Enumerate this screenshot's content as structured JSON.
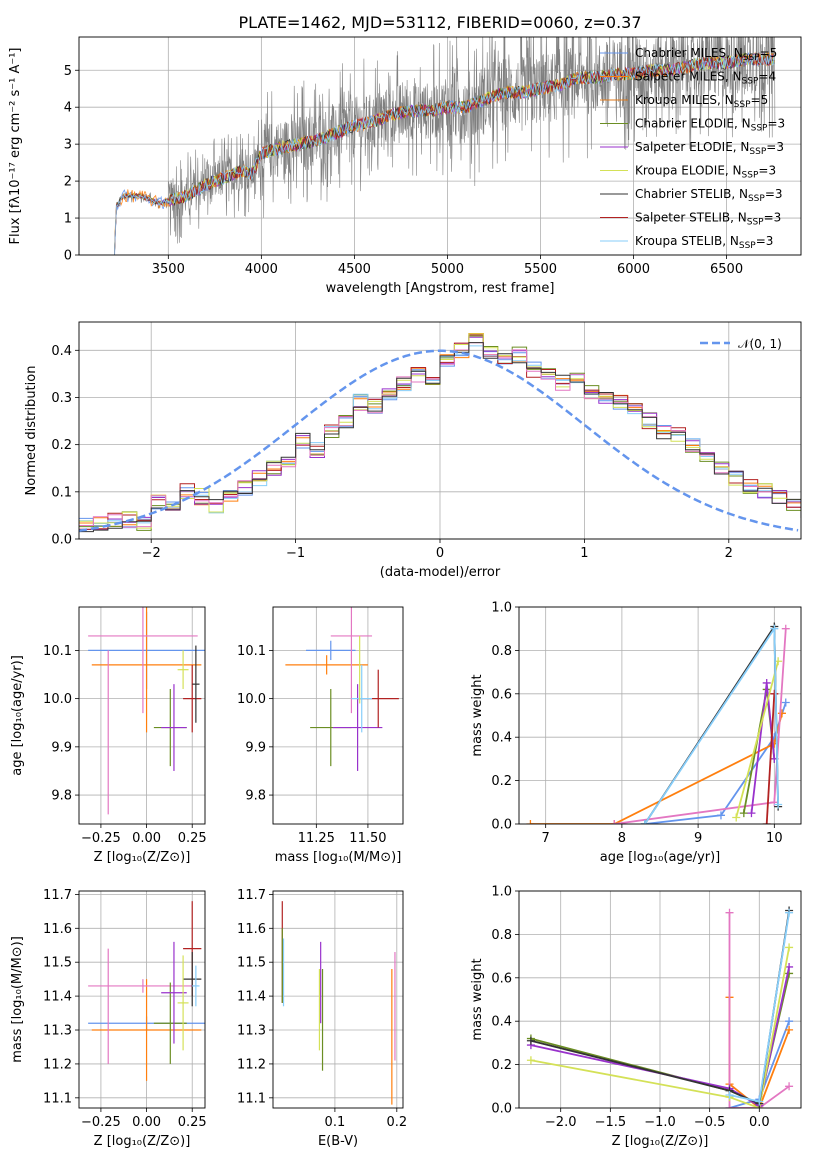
{
  "colors": {
    "chabrier_miles": "#6495ed",
    "salpeter_miles": "#ff7f0e",
    "kroupa_miles": "#e07a1a",
    "chabrier_elodie": "#6b8e23",
    "salpeter_elodie": "#9932cc",
    "kroupa_elodie": "#d4e157",
    "chabrier_stelib": "#333333",
    "salpeter_stelib": "#b22222",
    "kroupa_stelib": "#87cefa",
    "pink": "#e377c2",
    "grey_data": "#808080"
  },
  "chart_data": [
    {
      "id": "spectrum",
      "type": "line",
      "title": "PLATE=1462, MJD=53112, FIBERID=0060, z=0.37",
      "xlabel": "wavelength [Angstrom, rest frame]",
      "ylabel": "Flux [fλ10⁻¹⁷ erg cm⁻² s⁻¹ A⁻¹]",
      "xlim": [
        3020,
        6900
      ],
      "ylim": [
        0,
        5.9
      ],
      "xticks": [
        3500,
        4000,
        4500,
        5000,
        5500,
        6000,
        6500
      ],
      "yticks": [
        0,
        1,
        2,
        3,
        4,
        5
      ],
      "legend_position": "right",
      "legend": [
        {
          "label": "Chabrier MILES, N",
          "sub": "SSP",
          "suffix": "=5",
          "color": "#6495ed"
        },
        {
          "label": "Salpeter MILES, N",
          "sub": "SSP",
          "suffix": "=4",
          "color": "#ff7f0e"
        },
        {
          "label": "Kroupa MILES, N",
          "sub": "SSP",
          "suffix": "=5",
          "color": "#e07a1a"
        },
        {
          "label": "Chabrier ELODIE, N",
          "sub": "SSP",
          "suffix": "=3",
          "color": "#6b8e23"
        },
        {
          "label": "Salpeter ELODIE, N",
          "sub": "SSP",
          "suffix": "=3",
          "color": "#9932cc"
        },
        {
          "label": "Kroupa ELODIE, N",
          "sub": "SSP",
          "suffix": "=3",
          "color": "#d4e157"
        },
        {
          "label": "Chabrier STELIB, N",
          "sub": "SSP",
          "suffix": "=3",
          "color": "#333333"
        },
        {
          "label": "Salpeter STELIB, N",
          "sub": "SSP",
          "suffix": "=3",
          "color": "#b22222"
        },
        {
          "label": "Kroupa STELIB, N",
          "sub": "SSP",
          "suffix": "=3",
          "color": "#87cefa"
        }
      ],
      "continuum": [
        [
          3210,
          0
        ],
        [
          3220,
          1.3
        ],
        [
          3260,
          1.6
        ],
        [
          3350,
          1.6
        ],
        [
          3450,
          1.4
        ],
        [
          3520,
          1.5
        ],
        [
          3600,
          1.6
        ],
        [
          3700,
          1.9
        ],
        [
          3800,
          2.1
        ],
        [
          3900,
          2.3
        ],
        [
          3950,
          2.2
        ],
        [
          4000,
          2.75
        ],
        [
          4100,
          2.9
        ],
        [
          4200,
          3.0
        ],
        [
          4300,
          3.1
        ],
        [
          4400,
          3.3
        ],
        [
          4500,
          3.5
        ],
        [
          4600,
          3.6
        ],
        [
          4700,
          3.8
        ],
        [
          4800,
          3.9
        ],
        [
          4900,
          3.9
        ],
        [
          5000,
          4.0
        ],
        [
          5100,
          4.0
        ],
        [
          5200,
          4.2
        ],
        [
          5300,
          4.4
        ],
        [
          5400,
          4.4
        ],
        [
          5500,
          4.5
        ],
        [
          5600,
          4.6
        ],
        [
          5700,
          4.8
        ],
        [
          5800,
          4.8
        ],
        [
          5900,
          4.9
        ],
        [
          6000,
          4.9
        ],
        [
          6100,
          5.0
        ],
        [
          6200,
          5.0
        ],
        [
          6300,
          5.1
        ],
        [
          6400,
          5.2
        ],
        [
          6500,
          5.2
        ],
        [
          6600,
          5.3
        ],
        [
          6750,
          5.3
        ]
      ]
    },
    {
      "id": "residuals",
      "type": "histogram",
      "xlabel": "(data-model)/error",
      "ylabel": "Normed distribution",
      "xlim": [
        -2.5,
        2.5
      ],
      "ylim": [
        0,
        0.46
      ],
      "xticks": [
        -2,
        -1,
        0,
        1,
        2
      ],
      "yticks": [
        0.0,
        0.1,
        0.2,
        0.3,
        0.4
      ],
      "legend_position": "upper right",
      "legend": [
        {
          "label": "𝒩(0, 1)",
          "color": "#6495ed",
          "style": "dashed"
        }
      ],
      "bin_width": 0.1,
      "bin_start": -2.5,
      "values": [
        0.03,
        0.03,
        0.04,
        0.04,
        0.03,
        0.08,
        0.07,
        0.1,
        0.09,
        0.07,
        0.09,
        0.11,
        0.13,
        0.15,
        0.17,
        0.21,
        0.19,
        0.23,
        0.25,
        0.29,
        0.28,
        0.31,
        0.33,
        0.35,
        0.34,
        0.38,
        0.4,
        0.42,
        0.4,
        0.38,
        0.39,
        0.36,
        0.35,
        0.33,
        0.34,
        0.31,
        0.3,
        0.29,
        0.28,
        0.25,
        0.23,
        0.22,
        0.2,
        0.18,
        0.15,
        0.13,
        0.11,
        0.1,
        0.09,
        0.07,
        0.06
      ]
    },
    {
      "id": "age_vs_Z",
      "type": "errorbar",
      "xlabel": "Z [log₁₀(Z/Z⊙)]",
      "ylabel": "age  [log₁₀(age/yr)]",
      "xlim": [
        -0.37,
        0.32
      ],
      "ylim": [
        9.74,
        10.19
      ],
      "xticks": [
        -0.25,
        0.0,
        0.25
      ],
      "xticklabels": [
        "−0.25",
        "0.00",
        "0.25"
      ],
      "yticks": [
        9.8,
        9.9,
        10.0,
        10.1
      ],
      "points": [
        {
          "x": 0.0,
          "y": 10.1,
          "xerr": 0.32,
          "yerr": 0.08,
          "color": "#6495ed"
        },
        {
          "x": 0.0,
          "y": 10.07,
          "xerr": 0.3,
          "yerr": 0.14,
          "color": "#ff7f0e"
        },
        {
          "x": -0.02,
          "y": 10.13,
          "xerr": 0.3,
          "yerr": 0.16,
          "color": "#e377c2"
        },
        {
          "x": -0.21,
          "y": 9.93,
          "xerr": 0.0,
          "yerr": 0.17,
          "color": "#e377c2"
        },
        {
          "x": 0.13,
          "y": 9.94,
          "xerr": 0.09,
          "yerr": 0.08,
          "color": "#6b8e23"
        },
        {
          "x": 0.15,
          "y": 9.94,
          "xerr": 0.07,
          "yerr": 0.09,
          "color": "#9932cc"
        },
        {
          "x": 0.25,
          "y": 10.0,
          "xerr": 0.05,
          "yerr": 0.07,
          "color": "#b22222"
        },
        {
          "x": 0.27,
          "y": 10.03,
          "xerr": 0.02,
          "yerr": 0.08,
          "color": "#333333"
        },
        {
          "x": 0.2,
          "y": 10.06,
          "xerr": 0.03,
          "yerr": 0.04,
          "color": "#d4e157"
        }
      ]
    },
    {
      "id": "age_vs_mass",
      "type": "errorbar",
      "xlabel": "mass [log₁₀(M/M⊙)]",
      "ylabel": "",
      "xlim": [
        11.04,
        11.67
      ],
      "ylim": [
        9.74,
        10.19
      ],
      "xticks": [
        11.25,
        11.5
      ],
      "xticklabels": [
        "11.25",
        "11.50"
      ],
      "yticks": [
        9.8,
        9.9,
        10.0,
        10.1
      ],
      "points": [
        {
          "x": 11.32,
          "y": 10.1,
          "xerr": 0.12,
          "yerr": 0.02,
          "color": "#6495ed"
        },
        {
          "x": 11.3,
          "y": 10.07,
          "xerr": 0.2,
          "yerr": 0.02,
          "color": "#ff7f0e"
        },
        {
          "x": 11.42,
          "y": 10.13,
          "xerr": 0.1,
          "yerr": 0.16,
          "color": "#e377c2"
        },
        {
          "x": 11.32,
          "y": 9.94,
          "xerr": 0.1,
          "yerr": 0.08,
          "color": "#6b8e23"
        },
        {
          "x": 11.45,
          "y": 9.94,
          "xerr": 0.12,
          "yerr": 0.09,
          "color": "#9932cc"
        },
        {
          "x": 11.55,
          "y": 10.0,
          "xerr": 0.1,
          "yerr": 0.06,
          "color": "#b22222"
        },
        {
          "x": 11.47,
          "y": 10.0,
          "xerr": 0.05,
          "yerr": 0.07,
          "color": "#87cefa"
        },
        {
          "x": 11.46,
          "y": 10.06,
          "xerr": 0.0,
          "yerr": 0.07,
          "color": "#d4e157"
        }
      ]
    },
    {
      "id": "weight_vs_age",
      "type": "line",
      "xlabel": "age  [log₁₀(age/yr)]",
      "ylabel": "mass weight",
      "xlim": [
        6.65,
        10.35
      ],
      "ylim": [
        0,
        1.0
      ],
      "xticks": [
        7,
        8,
        9,
        10
      ],
      "yticks": [
        0.0,
        0.2,
        0.4,
        0.6,
        0.8,
        1.0
      ],
      "series": [
        {
          "color": "#6495ed",
          "points": [
            [
              8.3,
              0.0
            ],
            [
              9.3,
              0.04
            ],
            [
              10.0,
              0.4
            ],
            [
              10.15,
              0.56
            ]
          ]
        },
        {
          "color": "#ff7f0e",
          "points": [
            [
              6.8,
              0.0
            ],
            [
              7.9,
              0.0
            ],
            [
              10.0,
              0.37
            ],
            [
              10.1,
              0.51
            ]
          ]
        },
        {
          "color": "#e377c2",
          "points": [
            [
              7.9,
              0.0
            ],
            [
              10.0,
              0.1
            ],
            [
              10.15,
              0.9
            ]
          ]
        },
        {
          "color": "#6b8e23",
          "points": [
            [
              9.6,
              0.05
            ],
            [
              9.9,
              0.62
            ],
            [
              10.0,
              0.3
            ]
          ]
        },
        {
          "color": "#9932cc",
          "points": [
            [
              9.7,
              0.05
            ],
            [
              9.9,
              0.65
            ],
            [
              10.0,
              0.3
            ]
          ]
        },
        {
          "color": "#d4e157",
          "points": [
            [
              9.5,
              0.03
            ],
            [
              10.05,
              0.75
            ]
          ]
        },
        {
          "color": "#333333",
          "points": [
            [
              8.3,
              0.0
            ],
            [
              10.0,
              0.91
            ],
            [
              10.05,
              0.08
            ]
          ]
        },
        {
          "color": "#b22222",
          "points": [
            [
              9.9,
              0.0
            ],
            [
              10.0,
              0.6
            ]
          ]
        },
        {
          "color": "#87cefa",
          "points": [
            [
              8.3,
              0.0
            ],
            [
              10.0,
              0.9
            ],
            [
              10.05,
              0.09
            ]
          ]
        }
      ]
    },
    {
      "id": "mass_vs_Z",
      "type": "errorbar",
      "xlabel": "Z [log₁₀(Z/Z⊙)]",
      "ylabel": "mass [log₁₀(M/M⊙)]",
      "xlim": [
        -0.37,
        0.32
      ],
      "ylim": [
        11.07,
        11.71
      ],
      "xticks": [
        -0.25,
        0.0,
        0.25
      ],
      "xticklabels": [
        "−0.25",
        "0.00",
        "0.25"
      ],
      "yticks": [
        11.1,
        11.2,
        11.3,
        11.4,
        11.5,
        11.6,
        11.7
      ],
      "points": [
        {
          "x": 0.0,
          "y": 11.32,
          "xerr": 0.32,
          "yerr": 0.02,
          "color": "#6495ed"
        },
        {
          "x": 0.0,
          "y": 11.3,
          "xerr": 0.3,
          "yerr": 0.15,
          "color": "#ff7f0e"
        },
        {
          "x": -0.02,
          "y": 11.43,
          "xerr": 0.3,
          "yerr": 0.02,
          "color": "#e377c2"
        },
        {
          "x": -0.21,
          "y": 11.37,
          "xerr": 0.0,
          "yerr": 0.17,
          "color": "#e377c2"
        },
        {
          "x": 0.13,
          "y": 11.32,
          "xerr": 0.09,
          "yerr": 0.12,
          "color": "#6b8e23"
        },
        {
          "x": 0.15,
          "y": 11.41,
          "xerr": 0.07,
          "yerr": 0.15,
          "color": "#9932cc"
        },
        {
          "x": 0.25,
          "y": 11.54,
          "xerr": 0.05,
          "yerr": 0.14,
          "color": "#b22222"
        },
        {
          "x": 0.25,
          "y": 11.45,
          "xerr": 0.05,
          "yerr": 0.08,
          "color": "#333333"
        },
        {
          "x": 0.2,
          "y": 11.38,
          "xerr": 0.03,
          "yerr": 0.14,
          "color": "#d4e157"
        },
        {
          "x": 0.27,
          "y": 11.43,
          "xerr": 0.02,
          "yerr": 0.06,
          "color": "#87cefa"
        }
      ]
    },
    {
      "id": "mass_vs_EBV",
      "type": "errorbar",
      "xlabel": "E(B-V)",
      "ylabel": "",
      "xlim": [
        0.0,
        0.21
      ],
      "ylim": [
        11.07,
        11.71
      ],
      "xticks": [
        0.1,
        0.2
      ],
      "xticklabels": [
        "0.1",
        "0.2"
      ],
      "yticks": [
        11.1,
        11.2,
        11.3,
        11.4,
        11.5,
        11.6,
        11.7
      ],
      "points": [
        {
          "x": 0.015,
          "y": 11.53,
          "xerr": 0.0,
          "yerr": 0.15,
          "color": "#b22222"
        },
        {
          "x": 0.017,
          "y": 11.47,
          "xerr": 0.0,
          "yerr": 0.1,
          "color": "#87cefa"
        },
        {
          "x": 0.015,
          "y": 11.49,
          "xerr": 0.0,
          "yerr": 0.11,
          "color": "#6b8e23"
        },
        {
          "x": 0.075,
          "y": 11.36,
          "xerr": 0.0,
          "yerr": 0.12,
          "color": "#d4e157"
        },
        {
          "x": 0.077,
          "y": 11.44,
          "xerr": 0.0,
          "yerr": 0.12,
          "color": "#9932cc"
        },
        {
          "x": 0.08,
          "y": 11.33,
          "xerr": 0.0,
          "yerr": 0.15,
          "color": "#6b8e23"
        },
        {
          "x": 0.192,
          "y": 11.28,
          "xerr": 0.0,
          "yerr": 0.2,
          "color": "#ff7f0e"
        },
        {
          "x": 0.197,
          "y": 11.37,
          "xerr": 0.0,
          "yerr": 0.16,
          "color": "#e377c2"
        }
      ]
    },
    {
      "id": "weight_vs_Z",
      "type": "line",
      "xlabel": "Z [log₁₀(Z/Z⊙)]",
      "ylabel": "mass weight",
      "xlim": [
        -2.42,
        0.42
      ],
      "ylim": [
        0,
        1.0
      ],
      "xticks": [
        -2.0,
        -1.5,
        -1.0,
        -0.5,
        0.0
      ],
      "xticklabels": [
        "−2.0",
        "−1.5",
        "−1.0",
        "−0.5",
        "0.0"
      ],
      "yticks": [
        0.0,
        0.2,
        0.4,
        0.6,
        0.8,
        1.0
      ],
      "series": [
        {
          "color": "#6495ed",
          "points": [
            [
              -0.3,
              0.0
            ],
            [
              0.0,
              0.04
            ],
            [
              0.3,
              0.4
            ]
          ]
        },
        {
          "color": "#ff7f0e",
          "points": [
            [
              -0.3,
              0.51
            ],
            [
              -0.3,
              0.11
            ],
            [
              0.0,
              0.0
            ],
            [
              0.3,
              0.36
            ]
          ]
        },
        {
          "color": "#e377c2",
          "points": [
            [
              -0.3,
              0.9
            ],
            [
              -0.3,
              0.0
            ],
            [
              0.0,
              0.0
            ],
            [
              0.3,
              0.1
            ]
          ]
        },
        {
          "color": "#6b8e23",
          "points": [
            [
              -2.3,
              0.32
            ],
            [
              -0.3,
              0.08
            ],
            [
              0.0,
              0.02
            ],
            [
              0.3,
              0.62
            ]
          ]
        },
        {
          "color": "#9932cc",
          "points": [
            [
              -2.3,
              0.29
            ],
            [
              -0.3,
              0.09
            ],
            [
              0.0,
              0.01
            ],
            [
              0.3,
              0.65
            ]
          ]
        },
        {
          "color": "#d4e157",
          "points": [
            [
              -2.3,
              0.22
            ],
            [
              -0.3,
              0.05
            ],
            [
              0.0,
              0.0
            ],
            [
              0.3,
              0.74
            ]
          ]
        },
        {
          "color": "#333333",
          "points": [
            [
              -2.3,
              0.31
            ],
            [
              -0.3,
              0.08
            ],
            [
              0.0,
              0.02
            ],
            [
              0.3,
              0.91
            ]
          ]
        },
        {
          "color": "#87cefa",
          "points": [
            [
              -0.3,
              0.06
            ],
            [
              0.0,
              0.03
            ],
            [
              0.3,
              0.9
            ]
          ]
        }
      ]
    }
  ]
}
